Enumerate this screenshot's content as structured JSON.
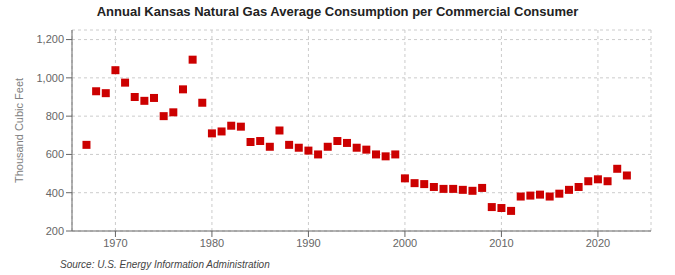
{
  "chart_data": {
    "type": "scatter",
    "title": "Annual Kansas Natural Gas Average Consumption per Commercial Consumer",
    "ylabel": "Thousand Cubic Feet",
    "annotations": [
      "Source: U.S. Energy Information Administration"
    ],
    "color": "#cc0000",
    "marker": "square",
    "grid": true,
    "xlim": [
      1965.5,
      2025.5
    ],
    "xticks": [
      1970,
      1980,
      1990,
      2000,
      2010,
      2020
    ],
    "ylim": [
      200,
      1250
    ],
    "yticks": [
      200,
      400,
      600,
      800,
      {
        "value": 1000,
        "label": "1,000"
      },
      {
        "value": 1200,
        "label": "1,200"
      }
    ],
    "x": [
      1967,
      1968,
      1969,
      1970,
      1971,
      1972,
      1973,
      1974,
      1975,
      1976,
      1977,
      1978,
      1979,
      1980,
      1981,
      1982,
      1983,
      1984,
      1985,
      1986,
      1987,
      1988,
      1989,
      1990,
      1991,
      1992,
      1993,
      1994,
      1995,
      1996,
      1997,
      1998,
      1999,
      2000,
      2001,
      2002,
      2003,
      2004,
      2005,
      2006,
      2007,
      2008,
      2009,
      2010,
      2011,
      2012,
      2013,
      2014,
      2015,
      2016,
      2017,
      2018,
      2019,
      2020,
      2021,
      2022,
      2023
    ],
    "values": [
      650,
      930,
      920,
      1040,
      975,
      900,
      880,
      895,
      800,
      820,
      940,
      1095,
      870,
      710,
      720,
      750,
      745,
      665,
      670,
      640,
      725,
      650,
      635,
      620,
      600,
      640,
      670,
      660,
      635,
      625,
      600,
      590,
      600,
      475,
      450,
      445,
      430,
      420,
      420,
      415,
      410,
      425,
      325,
      320,
      305,
      380,
      385,
      390,
      380,
      395,
      415,
      430,
      460,
      470,
      460,
      525,
      490
    ]
  }
}
